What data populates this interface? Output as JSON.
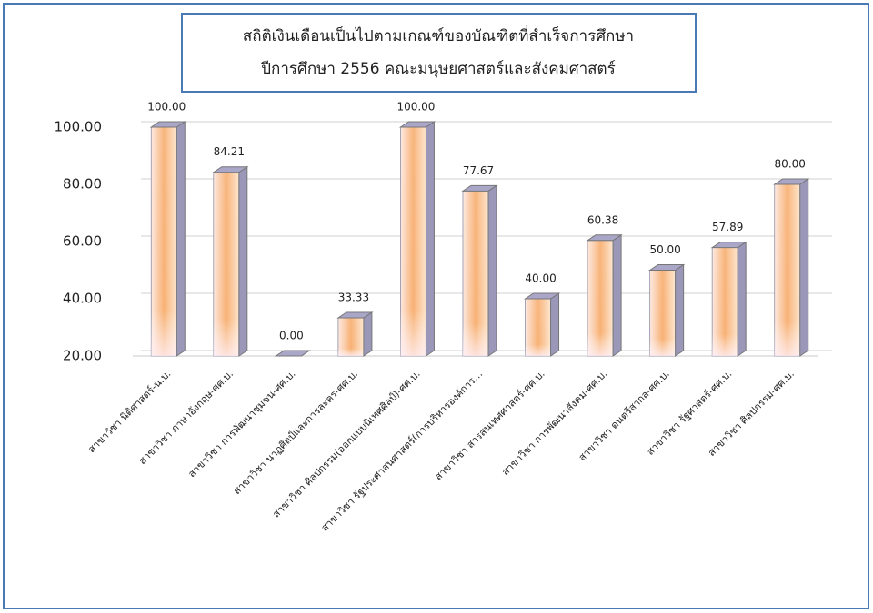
{
  "chart_data": {
    "type": "bar3d",
    "title": "สถิติเงินเดือนเป็นไปตามเกณฑ์ของบัณฑิตที่สำเร็จการศึกษา",
    "subtitle": "ปีการศึกษา 2556 คณะมนุษยศาสตร์และสังคมศาสตร์",
    "categories": [
      "สาขาวิชา นิติศาสตร์-น.บ.",
      "สาขาวิชา ภาษาอังกฤษ-ศศ.บ.",
      "สาขาวิชา การพัฒนาชุมชน-ศศ.บ.",
      "สาขาวิชา นาฏศิลป์และการละคร-ศศ.บ.",
      "สาขาวิชา ศิลปกรรม(ออกแบบนิเทศศิลป์)-ศศ.บ.",
      "สาขาวิชา รัฐประศาสนศาสตร์(การบริหารองค์การ…",
      "สาขาวิชา สารสนเทศศาสตร์-ศศ.บ.",
      "สาขาวิชา การพัฒนาสังคม-ศศ.บ.",
      "สาขาวิชา ดนตรีสากล-ศศ.บ.",
      "สาขาวิชา รัฐศาสตร์-ศศ.บ.",
      "สาขาวิชา ศิลปกรรม-ศศ.บ."
    ],
    "values": [
      100,
      84.21,
      0,
      33.33,
      100,
      77.67,
      40,
      60.38,
      50,
      57.89,
      80
    ],
    "value_labels": [
      "100.00",
      "84.21",
      "0.00",
      "33.33",
      "100.00",
      "77.67",
      "40.00",
      "60.38",
      "50.00",
      "57.89",
      "80.00"
    ],
    "ylim": [
      20,
      100
    ],
    "yticks": [
      {
        "value": 20,
        "label": "20.00"
      },
      {
        "value": 40,
        "label": "40.00"
      },
      {
        "value": 60,
        "label": "60.00"
      },
      {
        "value": 80,
        "label": "80.00"
      },
      {
        "value": 100,
        "label": "100.00"
      }
    ],
    "grid": true
  }
}
